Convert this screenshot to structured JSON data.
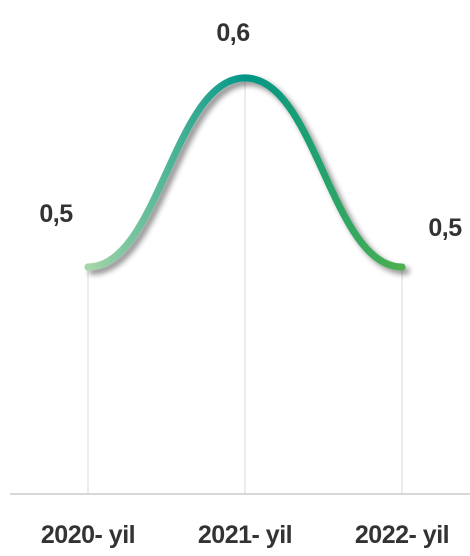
{
  "chart_data": {
    "type": "line",
    "smooth": true,
    "categories": [
      "2020- yil",
      "2021- yil",
      "2022- yil"
    ],
    "values": [
      0.5,
      0.6,
      0.5
    ],
    "data_labels": [
      "0,5",
      "0,6",
      "0,5"
    ],
    "title": "",
    "xlabel": "",
    "ylabel": "",
    "ylim": [
      0.38,
      0.62
    ],
    "grid": "vertical",
    "legend": "none"
  },
  "colors": {
    "gradient_start": "#a5d6a7",
    "gradient_mid": "#009688",
    "gradient_end": "#4caf50",
    "label_text": "#333333",
    "grid": "#d9d9d9",
    "axis": "#cccccc"
  }
}
